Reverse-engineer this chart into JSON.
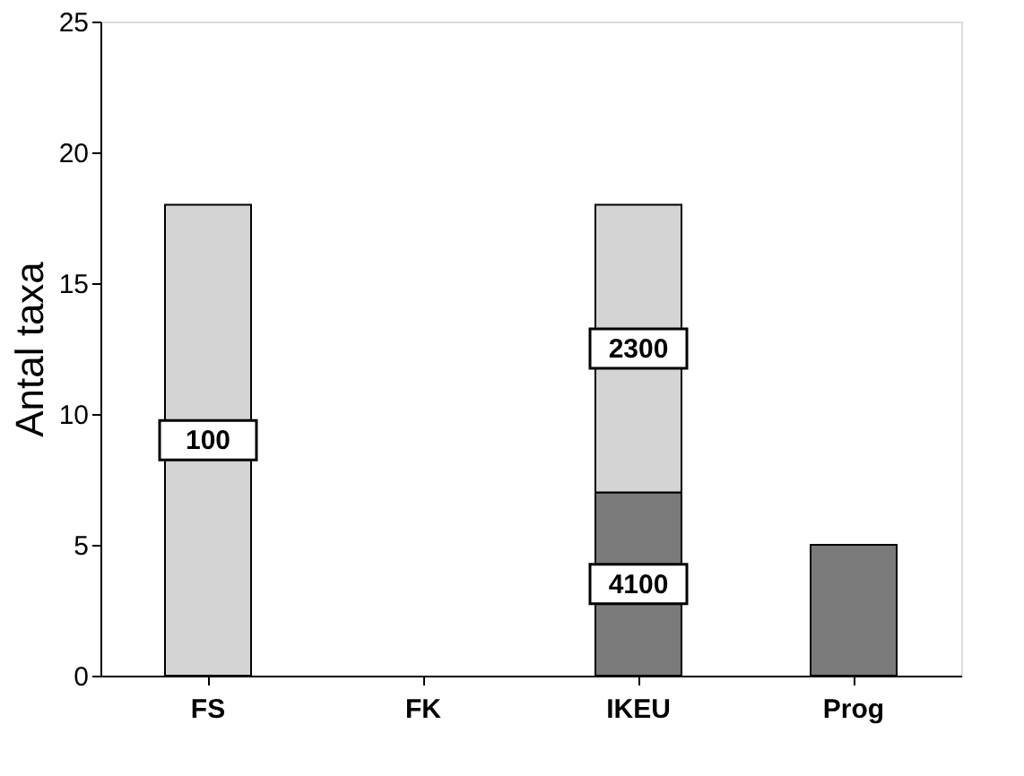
{
  "chart_data": {
    "type": "bar",
    "ylabel": "Antal taxa",
    "categories": [
      "FS",
      "FK",
      "IKEU",
      "Prog"
    ],
    "stacked": true,
    "series": [
      {
        "color": "#7a7a7a",
        "values": [
          null,
          null,
          7,
          5
        ]
      },
      {
        "color": "#d4d4d4",
        "values": [
          18,
          null,
          11,
          null
        ]
      }
    ],
    "ylim": [
      0,
      25
    ],
    "yticks": [
      0,
      5,
      10,
      15,
      20,
      25
    ],
    "grid": false,
    "annotations": [
      "100",
      "2300",
      "4100"
    ]
  }
}
